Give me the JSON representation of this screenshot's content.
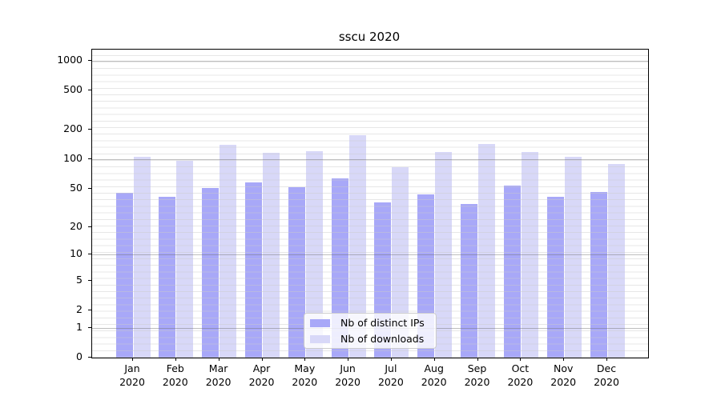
{
  "chart_data": {
    "type": "bar",
    "title": "sscu 2020",
    "categories": [
      "Jan",
      "Feb",
      "Mar",
      "Apr",
      "May",
      "Jun",
      "Jul",
      "Aug",
      "Sep",
      "Oct",
      "Nov",
      "Dec"
    ],
    "category_year": "2020",
    "series": [
      {
        "name": "Nb of distinct IPs",
        "color": "#a8a8f8",
        "values": [
          45,
          41,
          51,
          58,
          52,
          64,
          36,
          44,
          35,
          54,
          41,
          46
        ]
      },
      {
        "name": "Nb of downloads",
        "color": "#d8d8f8",
        "values": [
          107,
          97,
          140,
          116,
          121,
          176,
          83,
          118,
          143,
          118,
          107,
          90
        ]
      }
    ],
    "xlabel": "",
    "ylabel": "",
    "yscale": "log1p",
    "ylim": [
      0,
      1300
    ],
    "yticks": [
      1000,
      500,
      200,
      100,
      50,
      20,
      10,
      5,
      2,
      1,
      0
    ],
    "major_gridlines": [
      1,
      10,
      100,
      1000
    ],
    "grid": true,
    "legend_position": "inside-bottom-center",
    "colors": {
      "axis": "#000000",
      "major_grid": "#6e6e6e",
      "minor_grid": "#cacaca",
      "legend_border": "#cccccc"
    }
  }
}
